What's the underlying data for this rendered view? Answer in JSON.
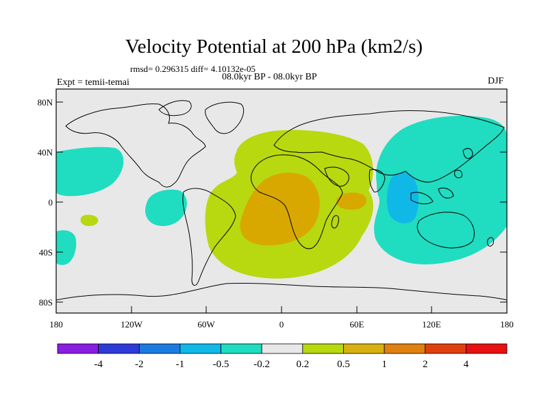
{
  "title": "Velocity Potential at 200 hPa (km2/s)",
  "stats_line": "rmsd= 0.296315 diff= 4.10132e-05",
  "period_line": "08.0kyr BP - 08.0kyr BP",
  "expt_line": "Expt = temii-temai",
  "season": "DJF",
  "lat_ticks": [
    "80N",
    "40N",
    "0",
    "40S",
    "80S"
  ],
  "lon_ticks": [
    "180",
    "120W",
    "60W",
    "0",
    "60E",
    "120E",
    "180"
  ],
  "colorbar": {
    "labels": [
      "-4",
      "-2",
      "-1",
      "-0.5",
      "-0.2",
      "0.2",
      "0.5",
      "1",
      "2",
      "4"
    ],
    "colors": [
      "#8a1ee0",
      "#2e3ad8",
      "#1a7ce0",
      "#10b8e8",
      "#20dcc0",
      "#e8e8e8",
      "#b8d810",
      "#d8b010",
      "#e08010",
      "#e04010",
      "#e81010"
    ]
  },
  "field_colors": {
    "land_bg": "#e8e8e8",
    "pos_0_2": "#b8d810",
    "pos_0_5": "#d8a800",
    "pos_1": "#d8b010",
    "neg_0_2": "#20dcc0",
    "neg_0_5": "#10b8e8"
  }
}
